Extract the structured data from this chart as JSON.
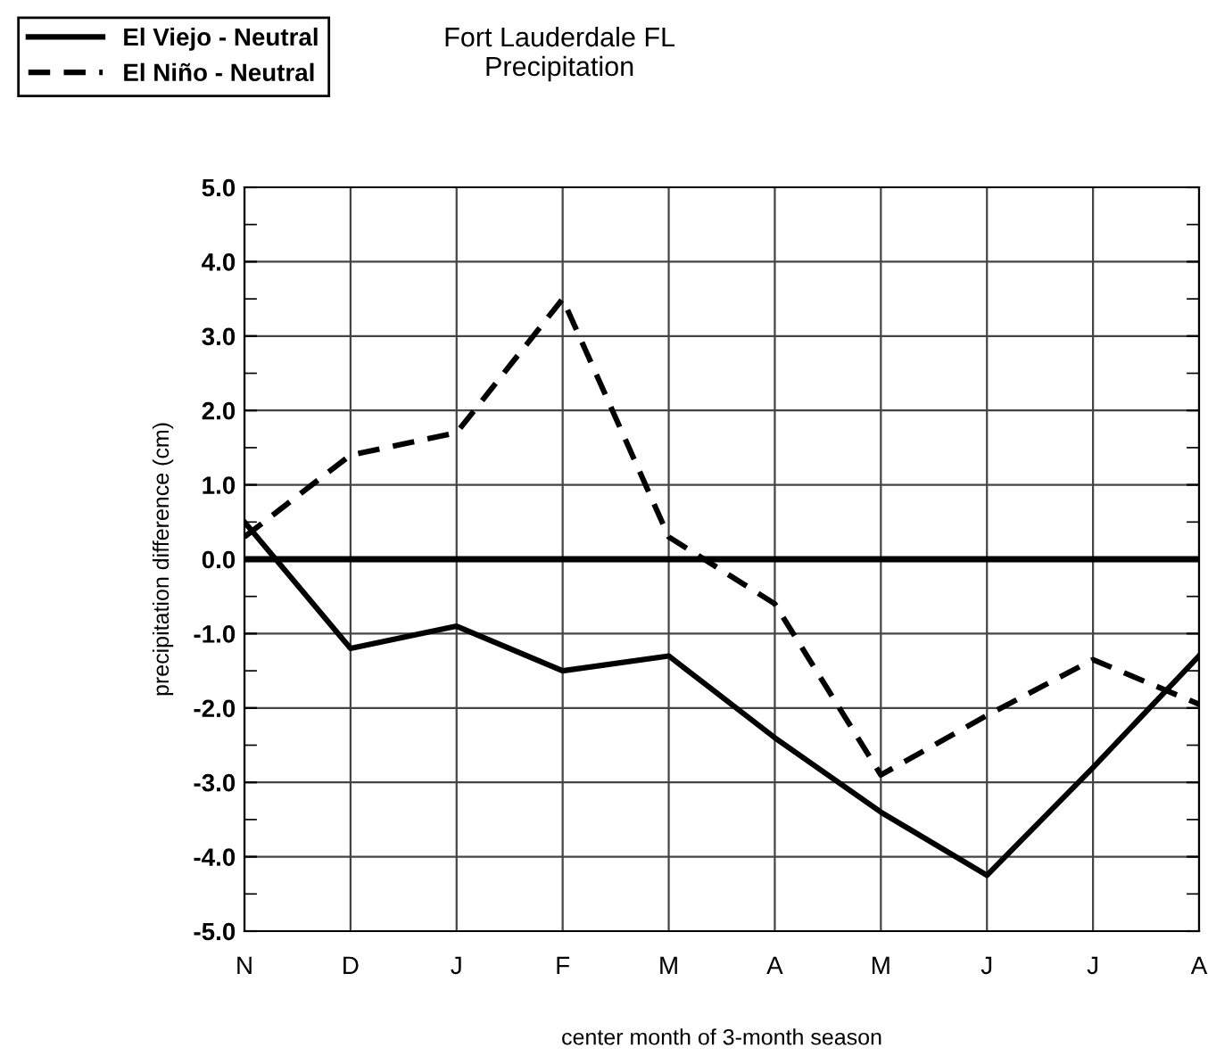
{
  "chart_data": {
    "type": "line",
    "title": "Fort Lauderdale FL\nPrecipitation",
    "xlabel": "center month of 3-month season",
    "ylabel": "precipitation difference (cm)",
    "categories": [
      "N",
      "D",
      "J",
      "F",
      "M",
      "A",
      "M",
      "J",
      "J",
      "A"
    ],
    "series": [
      {
        "name": "El Viejo - Neutral",
        "color": "#000000",
        "line_style": "solid",
        "values": [
          0.5,
          -1.2,
          -0.9,
          -1.5,
          -1.3,
          -2.4,
          -3.4,
          -4.25,
          -2.8,
          -1.3
        ]
      },
      {
        "name": "El Niño - Neutral",
        "color": "#000000",
        "line_style": "dashed",
        "values": [
          0.3,
          1.4,
          1.7,
          3.5,
          0.3,
          -0.6,
          -2.9,
          -2.1,
          -1.35,
          -1.95
        ]
      }
    ],
    "ylim": [
      -5,
      5
    ],
    "yticks": [
      {
        "value": -5,
        "label": "-5.0"
      },
      {
        "value": -4,
        "label": "-4.0"
      },
      {
        "value": -3,
        "label": "-3.0"
      },
      {
        "value": -2,
        "label": "-2.0"
      },
      {
        "value": -1,
        "label": "-1.0"
      },
      {
        "value": 0,
        "label": "0.0"
      },
      {
        "value": 1,
        "label": "1.0"
      },
      {
        "value": 2,
        "label": "2.0"
      },
      {
        "value": 3,
        "label": "3.0"
      },
      {
        "value": 4,
        "label": "4.0"
      },
      {
        "value": 5,
        "label": "5.0"
      }
    ],
    "ref_lines": [
      {
        "axis": "y",
        "value": 0,
        "color": "#000000",
        "line_style": "solid"
      }
    ],
    "grid": true,
    "legend": "top left",
    "marker": "none"
  }
}
